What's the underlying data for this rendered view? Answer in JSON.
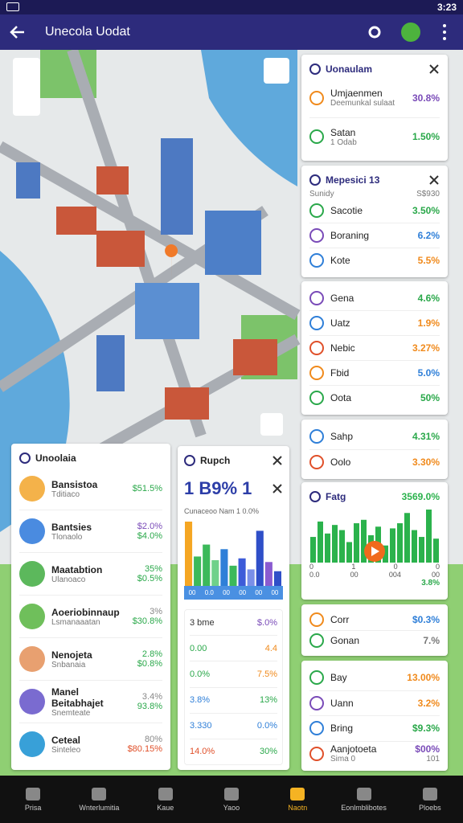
{
  "status_bar": {
    "time": "3:23"
  },
  "app_bar": {
    "title": "Unecola Uodat"
  },
  "side_cards": [
    {
      "title": "Uonaulam",
      "rows": [
        {
          "label": "Umjaenmen",
          "value": "30.8%",
          "color": "#7a4bb8",
          "sub": "Deemunkal sulaat"
        },
        {
          "label": "Satan",
          "value": "1.50%",
          "color": "#2aa84a",
          "sub": "1 Odab"
        }
      ]
    },
    {
      "title": "Mepesici 13",
      "note": "Sunidy",
      "note_value": "S$930",
      "rows": [
        {
          "label": "Sacotie",
          "value": "3.50%",
          "color": "#2aa84a"
        },
        {
          "label": "Boraning",
          "value": "6.2%",
          "color": "#2f7fd8"
        },
        {
          "label": "Kote",
          "value": "5.5%",
          "color": "#f08a1c"
        }
      ]
    },
    {
      "rows": [
        {
          "label": "Gena",
          "value": "4.6%",
          "color": "#2aa84a"
        },
        {
          "label": "Uatz",
          "value": "1.9%",
          "color": "#f08a1c"
        },
        {
          "label": "Nebic",
          "value": "3.27%",
          "color": "#f08a1c"
        },
        {
          "label": "Fbid",
          "value": "5.0%",
          "color": "#2f7fd8"
        },
        {
          "label": "Oota",
          "value": "50%",
          "color": "#2aa84a"
        }
      ]
    },
    {
      "rows": [
        {
          "label": "Sahp",
          "value": "4.31%",
          "color": "#2aa84a"
        },
        {
          "label": "Oolo",
          "value": "3.30%",
          "color": "#f08a1c"
        }
      ]
    },
    {
      "title": "Fatg",
      "headline": "3569.0%",
      "bar_color": "#2bb24c",
      "bars": [
        30,
        48,
        34,
        44,
        38,
        24,
        46,
        50,
        32,
        42,
        20,
        40,
        46,
        58,
        38,
        30,
        62,
        28
      ],
      "axis_labels": [
        "0",
        "1",
        "0",
        "0"
      ],
      "axis_labels_2": [
        "0.0",
        "00",
        "004",
        "00"
      ],
      "footer": "3.8%"
    },
    {
      "rows": [
        {
          "label": "Corr",
          "value": "$0.3%",
          "color": "#2f7fd8"
        },
        {
          "label": "Gonan",
          "value": "7.%",
          "color": "#777777"
        }
      ]
    },
    {
      "rows": [
        {
          "label": "Bay",
          "value": "13.00%",
          "color": "#f08a1c"
        },
        {
          "label": "Uann",
          "value": "3.2%",
          "color": "#f08a1c"
        },
        {
          "label": "Bring",
          "value": "$9.3%",
          "color": "#2aa84a"
        },
        {
          "label": "Aanjotoeta",
          "value": "$00%",
          "color": "#7a4bb8",
          "sub": "Sima 0",
          "sub_value": "101"
        }
      ]
    }
  ],
  "people_panel": {
    "title": "Unoolaia",
    "rows": [
      {
        "name": "Bansistoa",
        "sub": "Tditiaco",
        "values": [
          {
            "text": "$51.5%",
            "color": "#2aa84a"
          }
        ]
      },
      {
        "name": "Bantsies",
        "sub": "Tlonaolo",
        "values": [
          {
            "text": "$2.0%",
            "color": "#7a4bb8"
          },
          {
            "text": "$4.0%",
            "color": "#2aa84a"
          }
        ]
      },
      {
        "name": "Maatabtion",
        "sub": "Ulanoaco",
        "values": [
          {
            "text": "35%",
            "color": "#2aa84a"
          },
          {
            "text": "$0.5%",
            "color": "#2aa84a"
          }
        ]
      },
      {
        "name": "Aoeriobinnaup",
        "sub": "Lsmanaaatan",
        "values": [
          {
            "text": "3%",
            "color": "#888888"
          },
          {
            "text": "$30.8%",
            "color": "#2aa84a"
          }
        ]
      },
      {
        "name": "Nenojeta",
        "sub": "Snbanaia",
        "values": [
          {
            "text": "2.8%",
            "color": "#2aa84a"
          },
          {
            "text": "$0.8%",
            "color": "#2aa84a"
          }
        ]
      },
      {
        "name": "Manel Beitabhajet",
        "sub": "Snemteate",
        "values": [
          {
            "text": "3.4%",
            "color": "#888888"
          },
          {
            "text": "93.8%",
            "color": "#2aa84a"
          }
        ]
      },
      {
        "name": "Ceteal",
        "sub": "Sinteleo",
        "values": [
          {
            "text": "80%",
            "color": "#888888"
          },
          {
            "text": "$80.15%",
            "color": "#e0502a"
          }
        ]
      }
    ]
  },
  "report_panel": {
    "title": "Rupch",
    "headline": "1 B9% 1",
    "subtitle": "Cunaceoo Nam 1 0.0%",
    "bars": [
      {
        "value": 70,
        "color": "#f5a623"
      },
      {
        "value": 32,
        "color": "#3cb95a"
      },
      {
        "value": 45,
        "color": "#3cb95a"
      },
      {
        "value": 28,
        "color": "#6fd18a"
      },
      {
        "value": 40,
        "color": "#2f7fd8"
      },
      {
        "value": 22,
        "color": "#3cb95a"
      },
      {
        "value": 30,
        "color": "#3d5bd9"
      },
      {
        "value": 18,
        "color": "#7a8fe8"
      },
      {
        "value": 60,
        "color": "#2f4fc8"
      },
      {
        "value": 26,
        "color": "#8a5bd0"
      },
      {
        "value": 16,
        "color": "#2f4fc8"
      }
    ],
    "axis_labels": [
      "00",
      "0.0",
      "00",
      "00",
      "00",
      "00"
    ],
    "table": [
      [
        "3 bme",
        "$.0%"
      ],
      [
        "0.00",
        "4.4"
      ],
      [
        "0.0%",
        "7.5%"
      ],
      [
        "3.8%",
        "13%"
      ],
      [
        "3.330",
        "0.0%"
      ],
      [
        "14.0%",
        "30%"
      ]
    ],
    "table_colors": [
      [
        "#333333",
        "#7a4bb8"
      ],
      [
        "#2aa84a",
        "#f08a1c"
      ],
      [
        "#2aa84a",
        "#f08a1c"
      ],
      [
        "#2f7fd8",
        "#2aa84a"
      ],
      [
        "#2f7fd8",
        "#2f7fd8"
      ],
      [
        "#e0502a",
        "#2aa84a"
      ]
    ]
  },
  "bottom_nav": [
    {
      "label": "Prisa"
    },
    {
      "label": "Wnterlumitia"
    },
    {
      "label": "Kaue"
    },
    {
      "label": "Yaoo"
    },
    {
      "label": "Naotn",
      "active": true
    },
    {
      "label": "Eonlmblibotes"
    },
    {
      "label": "Ploebs"
    }
  ]
}
